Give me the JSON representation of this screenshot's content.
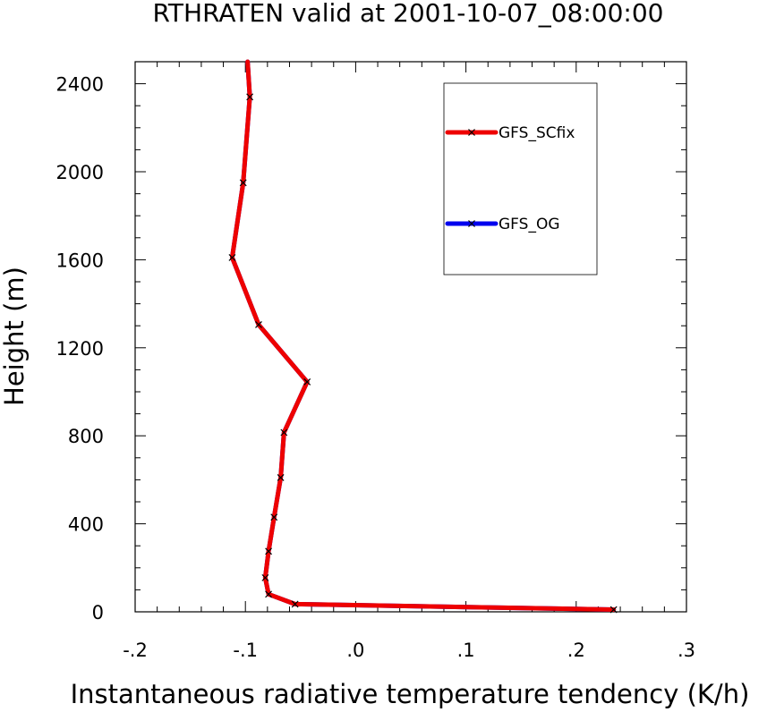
{
  "chart_data": {
    "type": "line",
    "title": "RTHRATEN valid at 2001-10-07_08:00:00",
    "xlabel": "Instantaneous radiative temperature tendency (K/h)",
    "ylabel": "Height (m)",
    "xlim": [
      -0.2,
      0.3
    ],
    "ylim": [
      0,
      2500
    ],
    "xticks": [
      {
        "value": -0.2,
        "label": "-.2"
      },
      {
        "value": -0.1,
        "label": "-.1"
      },
      {
        "value": 0.0,
        "label": ".0"
      },
      {
        "value": 0.1,
        "label": ".1"
      },
      {
        "value": 0.2,
        "label": ".2"
      },
      {
        "value": 0.3,
        "label": ".3"
      }
    ],
    "yticks": [
      {
        "value": 0,
        "label": "0"
      },
      {
        "value": 400,
        "label": "400"
      },
      {
        "value": 800,
        "label": "800"
      },
      {
        "value": 1200,
        "label": "1200"
      },
      {
        "value": 1600,
        "label": "1600"
      },
      {
        "value": 2000,
        "label": "2000"
      },
      {
        "value": 2400,
        "label": "2400"
      }
    ],
    "legend_position": "top-right",
    "series": [
      {
        "name": "GFS_OG",
        "color": "#0000ee",
        "points": [
          {
            "x": 0.234,
            "y": 10
          },
          {
            "x": -0.055,
            "y": 35
          },
          {
            "x": -0.079,
            "y": 80
          },
          {
            "x": -0.082,
            "y": 155
          },
          {
            "x": -0.079,
            "y": 275
          },
          {
            "x": -0.074,
            "y": 430
          },
          {
            "x": -0.068,
            "y": 610
          },
          {
            "x": -0.065,
            "y": 815
          },
          {
            "x": -0.044,
            "y": 1045
          },
          {
            "x": -0.088,
            "y": 1305
          },
          {
            "x": -0.112,
            "y": 1610
          },
          {
            "x": -0.102,
            "y": 1950
          },
          {
            "x": -0.096,
            "y": 2340
          },
          {
            "x": -0.098,
            "y": 2500
          }
        ]
      },
      {
        "name": "GFS_SCfix",
        "color": "#ee0000",
        "points": [
          {
            "x": 0.234,
            "y": 10
          },
          {
            "x": -0.055,
            "y": 35
          },
          {
            "x": -0.079,
            "y": 80
          },
          {
            "x": -0.082,
            "y": 155
          },
          {
            "x": -0.079,
            "y": 275
          },
          {
            "x": -0.074,
            "y": 430
          },
          {
            "x": -0.068,
            "y": 610
          },
          {
            "x": -0.065,
            "y": 815
          },
          {
            "x": -0.044,
            "y": 1045
          },
          {
            "x": -0.088,
            "y": 1305
          },
          {
            "x": -0.112,
            "y": 1610
          },
          {
            "x": -0.102,
            "y": 1950
          },
          {
            "x": -0.096,
            "y": 2340
          },
          {
            "x": -0.098,
            "y": 2500
          }
        ]
      }
    ],
    "legend_order": [
      "GFS_SCfix",
      "GFS_OG"
    ],
    "grid": false
  }
}
